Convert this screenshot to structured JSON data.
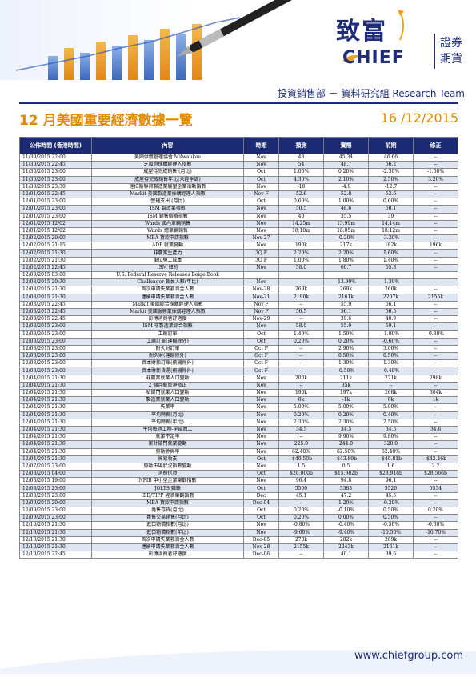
{
  "header": {
    "logo_zh": "致富",
    "logo_en": "CHIEF",
    "logo_sub1": "證券",
    "logo_sub2": "期貨",
    "department": "投資銷售部 － 資料研究組 Research Team"
  },
  "colors": {
    "brand": "#1f2d7a",
    "accent": "#e08a00",
    "header_bg": "#1b2a72",
    "row_alt": "#dfe6f2"
  },
  "page": {
    "title": "12 月美國重要經濟數據一覽",
    "date": "16 /12/2015"
  },
  "table": {
    "headers": [
      "公佈時間 (香港時間)",
      "內容",
      "時期",
      "預測",
      "實際",
      "前期",
      "修正"
    ],
    "rows": [
      [
        "11/30/2015 22:00",
        "美國供應管理協會 Milwaukee",
        "Nov",
        "48",
        "45.34",
        "46.66",
        "--"
      ],
      [
        "11/30/2015 22:45",
        "芝加哥採購經理人指數",
        "Nov",
        "54",
        "48.7",
        "56.2",
        "--"
      ],
      [
        "11/30/2015 23:00",
        "成屋待完成銷售 (月比)",
        "Oct",
        "1.00%",
        "0.20%",
        "-2.30%",
        "-1.60%"
      ],
      [
        "11/30/2015 23:00",
        "成屋待完成銷售年比(未經季調)",
        "Oct",
        "4.30%",
        "2.10%",
        "2.50%",
        "3.20%"
      ],
      [
        "11/30/2015 23:30",
        "達拉斯聯邦製造業展望企業活動指數",
        "Nov",
        "-10",
        "-4.9",
        "-12.7",
        "--"
      ],
      [
        "12/01/2015 22:45",
        "Markit 美國製造業採購經理人指數",
        "Nov F",
        "52.6",
        "52.8",
        "52.6",
        "--"
      ],
      [
        "12/01/2015 23:00",
        "營建支出 (月比)",
        "Oct",
        "0.60%",
        "1.00%",
        "0.60%",
        "--"
      ],
      [
        "12/01/2015 23:00",
        "ISM 製造業指數",
        "Nov",
        "50.5",
        "48.6",
        "50.1",
        "--"
      ],
      [
        "12/01/2015 23:00",
        "ISM 銷售價格指數",
        "Nov",
        "40",
        "35.5",
        "39",
        "--"
      ],
      [
        "12/01/2015 12/02",
        "Wards 國內車輛銷售",
        "Nov",
        "14.25m",
        "13.99m",
        "14.14m",
        "--"
      ],
      [
        "12/01/2015 12/02",
        "Wards 總車輛銷售",
        "Nov",
        "18.10m",
        "18.05m",
        "18.12m",
        "--"
      ],
      [
        "12/02/2015 20:00",
        "MBA 貸款申請指數",
        "Nov-27",
        "--",
        "-0.20%",
        "-3.20%",
        "--"
      ],
      [
        "12/02/2015 21:15",
        "ADP 就業變動",
        "Nov",
        "190k",
        "217k",
        "182k",
        "196k"
      ],
      [
        "12/02/2015 21:30",
        "非農業生產力",
        "3Q F",
        "2.20%",
        "2.20%",
        "1.60%",
        "--"
      ],
      [
        "12/02/2015 21:30",
        "單位勞工成本",
        "3Q F",
        "1.00%",
        "1.80%",
        "1.40%",
        "--"
      ],
      [
        "12/02/2015 22:45",
        "ISM 紐約",
        "Nov",
        "58.0",
        "60.7",
        "65.8",
        "--"
      ],
      [
        "12/03/2015 03:00",
        "U.S. Federal Reserve Releases Beige Book",
        "",
        "",
        "",
        "",
        ""
      ],
      [
        "12/03/2015 20:30",
        "Challenger 裁員人數(年比)",
        "Nov",
        "--",
        "-13.90%",
        "-1.30%",
        "--"
      ],
      [
        "12/03/2015 21:30",
        "首次申請失業救濟金人數",
        "Nov-28",
        "269k",
        "269k",
        "260k",
        "--"
      ],
      [
        "12/03/2015 21:30",
        "連續申請失業救濟金人數",
        "Nov-21",
        "2190k",
        "2161k",
        "2207k",
        "2155k"
      ],
      [
        "12/03/2015 22:45",
        "Markit 美國綜合採購經理人指數",
        "Nov F",
        "--",
        "55.9",
        "56.1",
        "--"
      ],
      [
        "12/03/2015 22:45",
        "Markit 美國服務業採購經理人指數",
        "Nov F",
        "56.5",
        "56.1",
        "56.5",
        "--"
      ],
      [
        "12/03/2015 22:45",
        "彭博消費者舒適度",
        "Nov-29",
        "--",
        "39.6",
        "40.9",
        "--"
      ],
      [
        "12/03/2015 23:00",
        "ISM 非製造業綜合指數",
        "Nov",
        "58.0",
        "55.9",
        "59.1",
        "--"
      ],
      [
        "12/03/2015 23:00",
        "工廠訂單",
        "Oct",
        "1.40%",
        "1.50%",
        "-1.00%",
        "-0.80%"
      ],
      [
        "12/03/2015 23:00",
        "工廠訂單(運輸除外)",
        "Oct",
        "0.20%",
        "0.20%",
        "-0.60%",
        "--"
      ],
      [
        "12/03/2015 23:00",
        "耐久財訂單",
        "Oct F",
        "--",
        "2.90%",
        "3.00%",
        "--"
      ],
      [
        "12/03/2015 23:00",
        "耐久財(運輸除外)",
        "Oct F",
        "--",
        "0.50%",
        "0.50%",
        "--"
      ],
      [
        "12/03/2015 23:00",
        "資本財新訂單(飛機除外)",
        "Oct F",
        "--",
        "1.30%",
        "1.30%",
        "--"
      ],
      [
        "12/03/2015 23:00",
        "資本財新貨運(飛機除外)",
        "Oct F",
        "--",
        "-0.50%",
        "-0.40%",
        "--"
      ],
      [
        "12/04/2015 21:30",
        "非農業就業人口變動",
        "Nov",
        "200k",
        "211k",
        "271k",
        "298k"
      ],
      [
        "12/04/2015 21:30",
        "2 個月薪資淨修正",
        "Nov",
        "--",
        "35k",
        "--",
        "--"
      ],
      [
        "12/04/2015 21:30",
        "私部門就業人口變動",
        "Nov",
        "190k",
        "197k",
        "268k",
        "304k"
      ],
      [
        "12/04/2015 21:30",
        "製造業就業人口變動",
        "Nov",
        "0k",
        "-1k",
        "0k",
        "1k"
      ],
      [
        "12/04/2015 21:30",
        "失業率",
        "Nov",
        "5.00%",
        "5.00%",
        "5.00%",
        "--"
      ],
      [
        "12/04/2015 21:30",
        "平均時薪(月比)",
        "Nov",
        "0.20%",
        "0.20%",
        "0.40%",
        "--"
      ],
      [
        "12/04/2015 21:30",
        "平均時薪(年比)",
        "Nov",
        "2.30%",
        "2.30%",
        "2.50%",
        "--"
      ],
      [
        "12/04/2015 21:30",
        "平均每週工時-全部員工",
        "Nov",
        "34.5",
        "34.5",
        "34.5",
        "34.6"
      ],
      [
        "12/04/2015 21:30",
        "就業不足率",
        "Nov",
        "--",
        "9.90%",
        "9.80%",
        "--"
      ],
      [
        "12/04/2015 21:30",
        "家計部門就業變動",
        "Nov",
        "225.0",
        "244.0",
        "320.0",
        "--"
      ],
      [
        "12/04/2015 21:30",
        "勞動參與率",
        "Nov",
        "62.40%",
        "62.50%",
        "62.40%",
        "--"
      ],
      [
        "12/04/2015 21:30",
        "貿易收支",
        "Oct",
        "-$40.50b",
        "-$43.89b",
        "-$40.81b",
        "-$42.46b"
      ],
      [
        "12/07/2015 23:00",
        "勞動市場狀況指數變動",
        "Nov",
        "1.5",
        "0.5",
        "1.6",
        "2.2"
      ],
      [
        "12/08/2015 04:00",
        "消費信貸",
        "Oct",
        "$20.000b",
        "$15.982b",
        "$28.918b",
        "$28.566b"
      ],
      [
        "12/08/2015 19:00",
        "NFIB 中小型企業樂觀指數",
        "Nov",
        "96.4",
        "94.8",
        "96.1",
        "--"
      ],
      [
        "12/08/2015 23:00",
        "JOLTS 職缺",
        "Oct",
        "5500",
        "5383",
        "5526",
        "5534"
      ],
      [
        "12/08/2015 23:00",
        "IBD/TIPP 經濟樂觀指數",
        "Dec",
        "45.1",
        "47.2",
        "45.5",
        "--"
      ],
      [
        "12/09/2015 20:00",
        "MBA 貸款申請指數",
        "Dec-04",
        "--",
        "1.20%",
        "-0.20%",
        "--"
      ],
      [
        "12/09/2015 23:00",
        "躉售存貨(月比)",
        "Oct",
        "0.20%",
        "-0.10%",
        "0.50%",
        "0.20%"
      ],
      [
        "12/09/2015 23:00",
        "躉售交易銷售(月比)",
        "Oct",
        "0.20%",
        "0.00%",
        "0.50%",
        "--"
      ],
      [
        "12/10/2015 21:30",
        "進口物價指數(月比)",
        "Nov",
        "-0.80%",
        "-0.40%",
        "-0.50%",
        "-0.30%"
      ],
      [
        "12/10/2015 21:30",
        "進口物價指數(年比)",
        "Nov",
        "-9.60%",
        "-9.40%",
        "-10.50%",
        "-10.70%"
      ],
      [
        "12/10/2015 21:30",
        "首次申請失業救濟金人數",
        "Dec-05",
        "270k",
        "282k",
        "269k",
        "--"
      ],
      [
        "12/10/2015 21:30",
        "連續申請失業救濟金人數",
        "Nov-28",
        "2155k",
        "2243k",
        "2161k",
        "--"
      ],
      [
        "12/10/2015 22:45",
        "彭博消費者舒適度",
        "Dec-06",
        "--",
        "40.1",
        "39.6",
        "--"
      ]
    ]
  },
  "footer": {
    "url": "www.chiefgroup.com"
  }
}
